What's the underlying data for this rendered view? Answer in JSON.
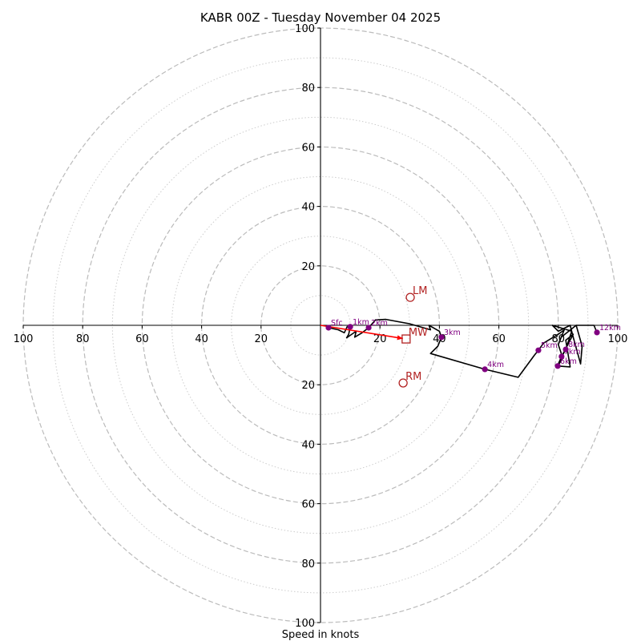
{
  "chart_data": {
    "type": "line",
    "subtype": "hodograph",
    "title": "KABR 00Z - Tuesday November 04 2025",
    "xlabel": "Speed in knots",
    "ylabel": "",
    "range_knots": [
      -100,
      100
    ],
    "rings_dashed": [
      20,
      40,
      60,
      80,
      100
    ],
    "rings_dotted": [
      10,
      30,
      50,
      70,
      90
    ],
    "x_tick_labels": [
      "100",
      "80",
      "60",
      "40",
      "20",
      "20",
      "40",
      "60",
      "80",
      "100"
    ],
    "x_tick_values": [
      -100,
      -80,
      -60,
      -40,
      -20,
      20,
      40,
      60,
      80,
      100
    ],
    "y_tick_labels": [
      "100",
      "80",
      "60",
      "40",
      "20",
      "20",
      "40",
      "60",
      "80",
      "100"
    ],
    "y_tick_values": [
      100,
      80,
      60,
      40,
      20,
      -20,
      -40,
      -60,
      -80,
      -100
    ],
    "grid": true,
    "trace_color": "#000000",
    "trace": [
      [
        2.7,
        -0.8
      ],
      [
        6.0,
        -1.5
      ],
      [
        8.0,
        -2.5
      ],
      [
        9.0,
        -0.4
      ],
      [
        10.0,
        -0.5
      ],
      [
        9.5,
        -3.0
      ],
      [
        8.8,
        -4.2
      ],
      [
        12.0,
        -2.0
      ],
      [
        11.5,
        -4.0
      ],
      [
        14.0,
        -2.5
      ],
      [
        16.2,
        -0.8
      ],
      [
        18.5,
        1.8
      ],
      [
        22.0,
        2.0
      ],
      [
        30.0,
        0.5
      ],
      [
        37.0,
        -1.5
      ],
      [
        36.5,
        0.0
      ],
      [
        40.0,
        -2.0
      ],
      [
        40.7,
        -4.0
      ],
      [
        39.5,
        -7.0
      ],
      [
        37.0,
        -9.5
      ],
      [
        55.3,
        -14.8
      ],
      [
        66.5,
        -17.5
      ],
      [
        72.0,
        -10.0
      ],
      [
        73.3,
        -8.4
      ],
      [
        75.0,
        -6.0
      ],
      [
        80.0,
        -3.0
      ],
      [
        82.0,
        -1.5
      ],
      [
        80.0,
        -6.5
      ],
      [
        81.5,
        -11.0
      ],
      [
        79.8,
        -13.7
      ],
      [
        84.0,
        -14.0
      ],
      [
        82.5,
        -5.0
      ],
      [
        85.0,
        -3.0
      ],
      [
        81.1,
        -10.5
      ],
      [
        80.0,
        -13.0
      ],
      [
        82.0,
        -9.0
      ],
      [
        82.5,
        -8.1
      ],
      [
        84.5,
        -2.0
      ],
      [
        78.0,
        0.0
      ],
      [
        80.0,
        -2.0
      ],
      [
        84.0,
        0.0
      ],
      [
        85.0,
        -4.0
      ],
      [
        87.5,
        -13.0
      ],
      [
        88.0,
        -7.0
      ],
      [
        86.0,
        0.0
      ],
      [
        81.0,
        -4.0
      ],
      [
        86.0,
        0.0
      ],
      [
        92.0,
        0.0
      ],
      [
        93.0,
        -2.4
      ]
    ],
    "height_points": [
      {
        "label": "Sfc",
        "u": 2.7,
        "v": -0.8
      },
      {
        "label": "1km",
        "u": 10.0,
        "v": -0.5
      },
      {
        "label": "2km",
        "u": 16.2,
        "v": -0.8
      },
      {
        "label": "3km",
        "u": 40.7,
        "v": -4.0
      },
      {
        "label": "4km",
        "u": 55.3,
        "v": -14.8
      },
      {
        "label": "5km",
        "u": 73.3,
        "v": -8.4
      },
      {
        "label": "6km",
        "u": 79.8,
        "v": -13.7
      },
      {
        "label": "7km",
        "u": 81.1,
        "v": -10.5
      },
      {
        "label": "8km",
        "u": 82.5,
        "v": -8.1
      },
      {
        "label": "12km",
        "u": 93.0,
        "v": -2.4
      }
    ],
    "height_point_color": "#800080",
    "motion_color": "#b22222",
    "storm_motions": [
      {
        "label": "LM",
        "u": 30.2,
        "v": 9.4,
        "marker": "circle"
      },
      {
        "label": "RM",
        "u": 27.8,
        "v": -19.4,
        "marker": "circle"
      },
      {
        "label": "MW",
        "u": 28.8,
        "v": -4.6,
        "marker": "square"
      }
    ],
    "shear_vector": {
      "from": [
        0,
        0
      ],
      "to": [
        28.8,
        -4.6
      ],
      "color": "#ff0000"
    }
  }
}
